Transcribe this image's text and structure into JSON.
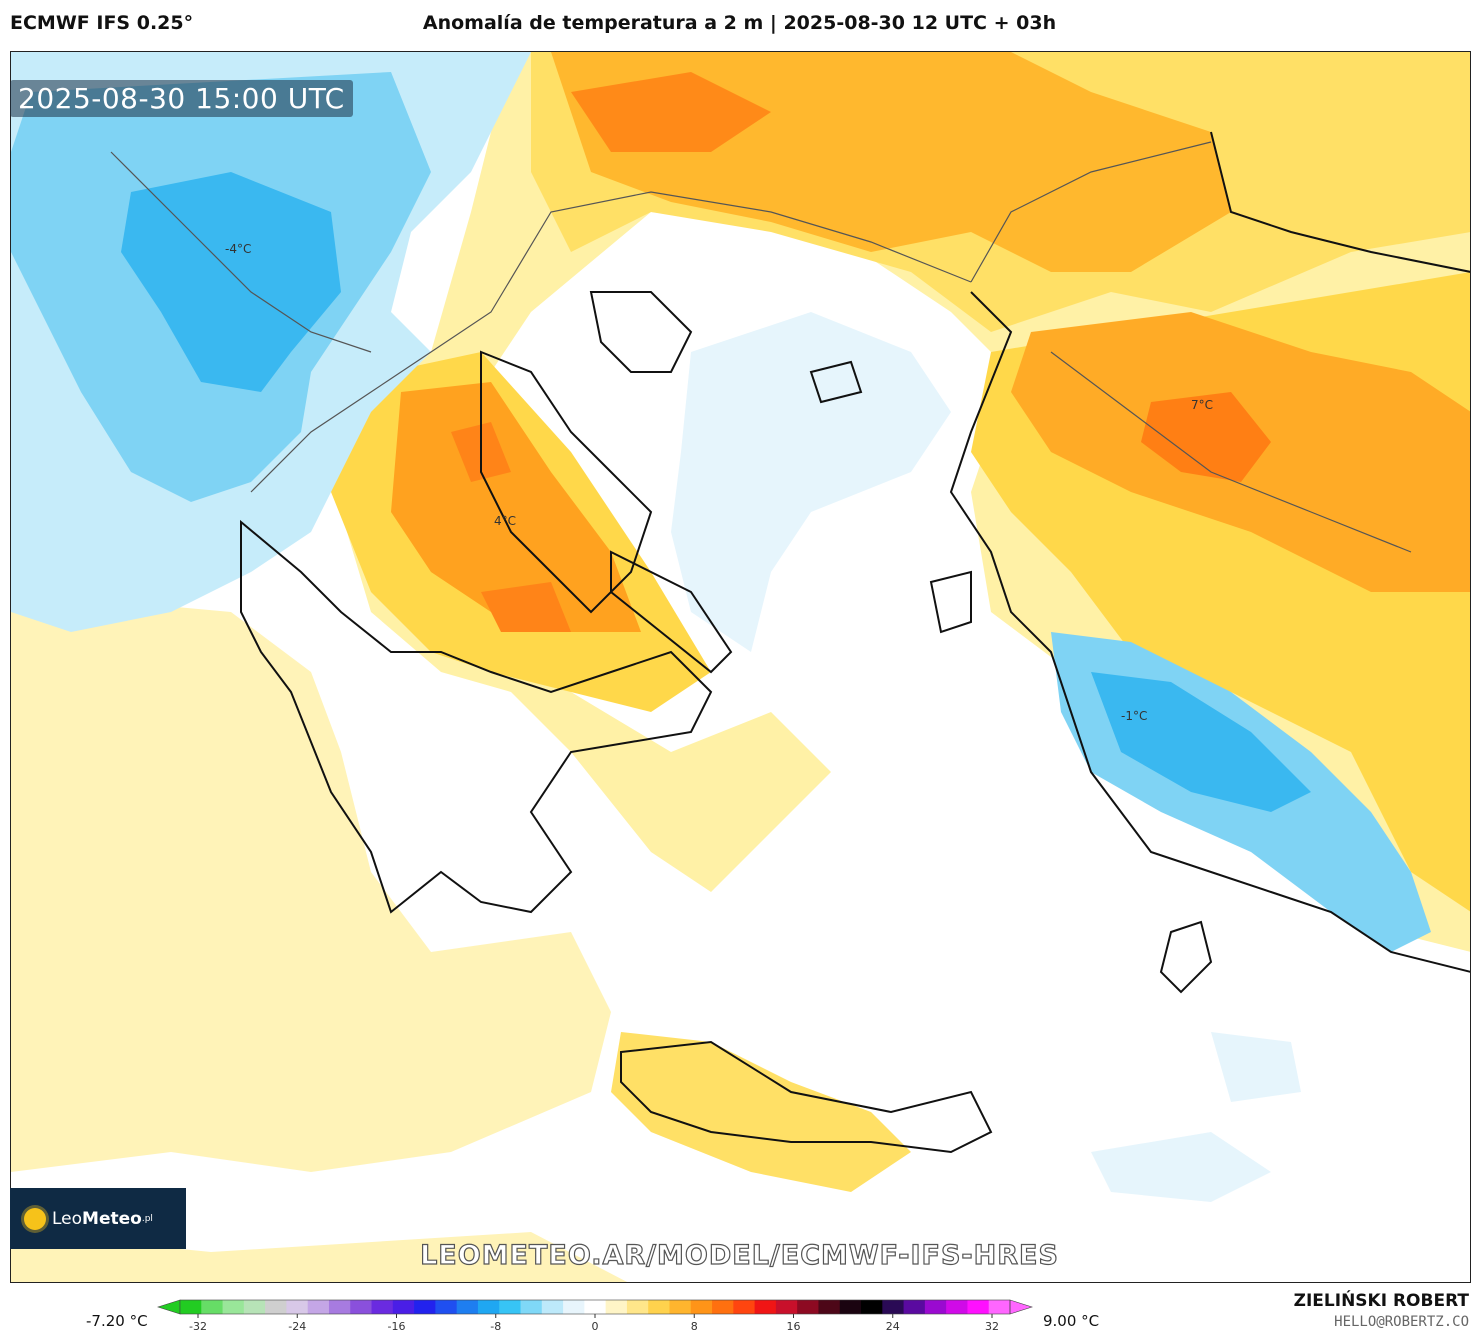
{
  "header": {
    "model": "ECMWF IFS 0.25°",
    "title": "Anomalía de temperatura a 2 m | 2025-08-30 12 UTC + 03h"
  },
  "map": {
    "valid_time": "2025-08-30 15:00 UTC",
    "region": "Greece / Aegean Sea / Western Turkey",
    "contour_labels": [
      "-4°C",
      "4°C",
      "7°C",
      "-1°C"
    ],
    "watermark": "LEOMETEO.AR/MODEL/ECMWF-IFS-HRES"
  },
  "logo": {
    "prefix": "Leo",
    "suffix": "Meteo",
    "tld": ".pl"
  },
  "colorbar": {
    "min_label": "-7.20 °C",
    "max_label": "9.00 °C",
    "ticks": [
      "-32",
      "-24",
      "-16",
      "-8",
      "0",
      "8",
      "16",
      "24",
      "32"
    ],
    "colors": [
      "#22cc22",
      "#66dd66",
      "#99e699",
      "#b7e3b7",
      "#cfcfcf",
      "#d8c8e8",
      "#c4a6e6",
      "#a77be0",
      "#8a50dc",
      "#6a2be0",
      "#4a1ee6",
      "#2222ee",
      "#1f4ff0",
      "#1e7ef0",
      "#1fa7f2",
      "#37c4f5",
      "#7fd8f7",
      "#bde9fa",
      "#e8f5fc",
      "#ffffff",
      "#fff5c7",
      "#ffe68a",
      "#ffd24d",
      "#ffb52e",
      "#ff9418",
      "#ff700f",
      "#ff450f",
      "#f01515",
      "#c8102b",
      "#8d0a22",
      "#4d0718",
      "#1a0410",
      "#000000",
      "#2a0a55",
      "#5a0aa0",
      "#9a0ad0",
      "#d00ae8",
      "#ff10ff",
      "#ff66ff"
    ]
  },
  "footer": {
    "author": "ZIELIŃSKI ROBERT",
    "email": "HELLO@ROBERTZ.CO"
  }
}
